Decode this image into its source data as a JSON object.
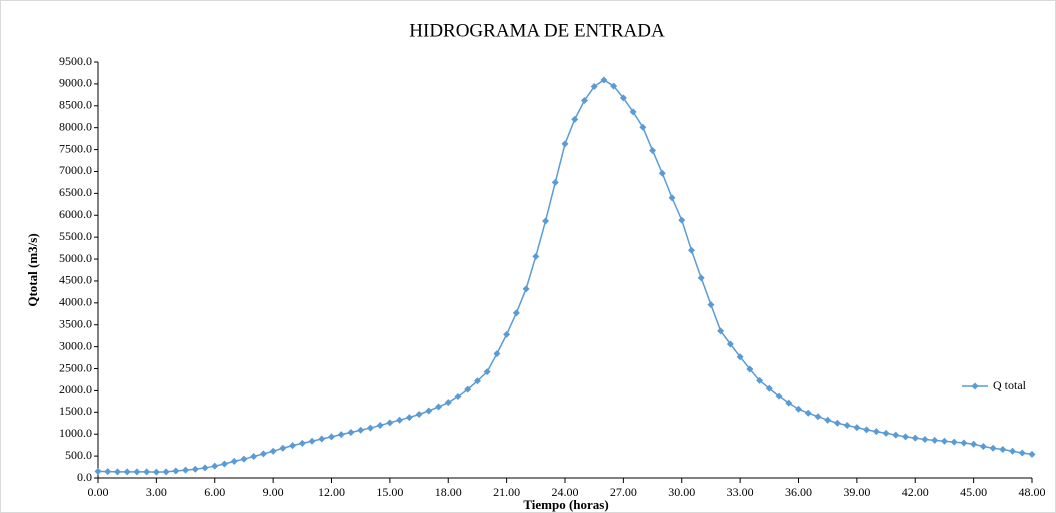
{
  "chart_data": {
    "type": "line",
    "title": "HIDROGRAMA  DE ENTRADA",
    "xlabel": "Tiempo (horas)",
    "ylabel": "Qtotal (m3/s)",
    "x": [
      0,
      0.5,
      1,
      1.5,
      2,
      2.5,
      3,
      3.5,
      4,
      4.5,
      5,
      5.5,
      6,
      6.5,
      7,
      7.5,
      8,
      8.5,
      9,
      9.5,
      10,
      10.5,
      11,
      11.5,
      12,
      12.5,
      13,
      13.5,
      14,
      14.5,
      15,
      15.5,
      16,
      16.5,
      17,
      17.5,
      18,
      18.5,
      19,
      19.5,
      20,
      20.5,
      21,
      21.5,
      22,
      22.5,
      23,
      23.5,
      24,
      24.5,
      25,
      25.5,
      26,
      26.5,
      27,
      27.5,
      28,
      28.5,
      29,
      29.5,
      30,
      30.5,
      31,
      31.5,
      32,
      32.5,
      33,
      33.5,
      34,
      34.5,
      35,
      35.5,
      36,
      36.5,
      37,
      37.5,
      38,
      38.5,
      39,
      39.5,
      40,
      40.5,
      41,
      41.5,
      42,
      42.5,
      43,
      43.5,
      44,
      44.5,
      45,
      45.5,
      46,
      46.5,
      47,
      47.5,
      48
    ],
    "series": [
      {
        "name": "Q total",
        "color": "#5b9bd5",
        "values": [
          150,
          145,
          140,
          140,
          140,
          140,
          135,
          140,
          160,
          180,
          200,
          230,
          270,
          320,
          380,
          430,
          490,
          550,
          610,
          680,
          740,
          790,
          840,
          890,
          940,
          990,
          1040,
          1090,
          1140,
          1200,
          1260,
          1320,
          1380,
          1450,
          1530,
          1620,
          1720,
          1860,
          2030,
          2220,
          2430,
          2840,
          3280,
          3770,
          4320,
          5060,
          5870,
          6750,
          7630,
          8190,
          8620,
          8940,
          9090,
          8950,
          8680,
          8360,
          8010,
          7480,
          6960,
          6400,
          5890,
          5200,
          4570,
          3960,
          3360,
          3060,
          2770,
          2490,
          2230,
          2050,
          1870,
          1710,
          1570,
          1480,
          1400,
          1320,
          1250,
          1200,
          1150,
          1100,
          1060,
          1020,
          980,
          940,
          910,
          880,
          860,
          840,
          820,
          800,
          770,
          720,
          680,
          650,
          610,
          570,
          540
        ]
      }
    ],
    "xlim": [
      0,
      48
    ],
    "xticks": [
      {
        "value": 0,
        "label": "0.00"
      },
      {
        "value": 3,
        "label": "3.00"
      },
      {
        "value": 6,
        "label": "6.00"
      },
      {
        "value": 9,
        "label": "9.00"
      },
      {
        "value": 12,
        "label": "12.00"
      },
      {
        "value": 15,
        "label": "15.00"
      },
      {
        "value": 18,
        "label": "18.00"
      },
      {
        "value": 21,
        "label": "21.00"
      },
      {
        "value": 24,
        "label": "24.00"
      },
      {
        "value": 27,
        "label": "27.00"
      },
      {
        "value": 30,
        "label": "30.00"
      },
      {
        "value": 33,
        "label": "33.00"
      },
      {
        "value": 36,
        "label": "36.00"
      },
      {
        "value": 39,
        "label": "39.00"
      },
      {
        "value": 42,
        "label": "42.00"
      },
      {
        "value": 45,
        "label": "45.00"
      },
      {
        "value": 48,
        "label": "48.00"
      }
    ],
    "ylim": [
      0,
      9500
    ],
    "yticks": [
      {
        "value": 0,
        "label": "0.0"
      },
      {
        "value": 500,
        "label": "500.0"
      },
      {
        "value": 1000,
        "label": "1000.0"
      },
      {
        "value": 1500,
        "label": "1500.0"
      },
      {
        "value": 2000,
        "label": "2000.0"
      },
      {
        "value": 2500,
        "label": "2500.0"
      },
      {
        "value": 3000,
        "label": "3000.0"
      },
      {
        "value": 3500,
        "label": "3500.0"
      },
      {
        "value": 4000,
        "label": "4000.0"
      },
      {
        "value": 4500,
        "label": "4500.0"
      },
      {
        "value": 5000,
        "label": "5000.0"
      },
      {
        "value": 5500,
        "label": "5500.0"
      },
      {
        "value": 6000,
        "label": "6000.0"
      },
      {
        "value": 6500,
        "label": "6500.0"
      },
      {
        "value": 7000,
        "label": "7000.0"
      },
      {
        "value": 7500,
        "label": "7500.0"
      },
      {
        "value": 8000,
        "label": "8000.0"
      },
      {
        "value": 8500,
        "label": "8500.0"
      },
      {
        "value": 9000,
        "label": "9000.0"
      },
      {
        "value": 9500,
        "label": "9500.0"
      }
    ],
    "grid": false,
    "legend": "right"
  }
}
